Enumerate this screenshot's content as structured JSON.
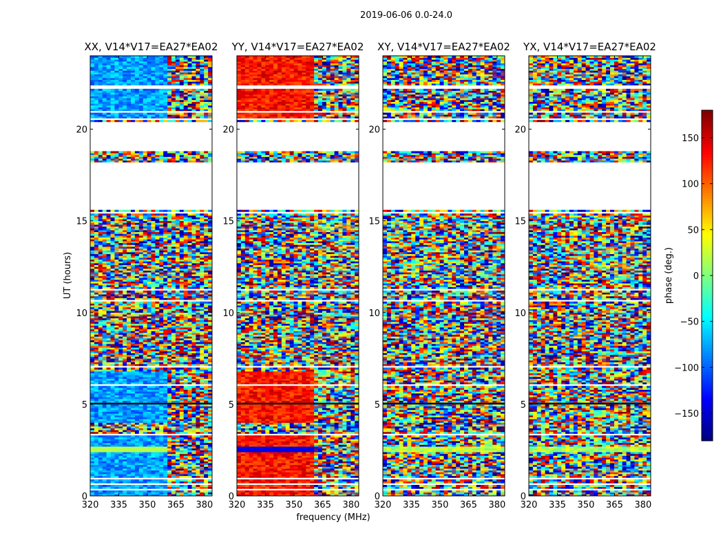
{
  "figure": {
    "suptitle": "2019-06-06 0.0-24.0"
  },
  "chart_data": {
    "type": "heatmap",
    "panels": [
      {
        "title": "XX, V14*V17=EA27*EA02",
        "tone": "blue",
        "cross": false
      },
      {
        "title": "YY, V14*V17=EA27*EA02",
        "tone": "red",
        "cross": false
      },
      {
        "title": "XY, V14*V17=EA27*EA02",
        "tone": "noise",
        "cross": true
      },
      {
        "title": "YX, V14*V17=EA27*EA02",
        "tone": "noise",
        "cross": true
      }
    ],
    "xlabel": "frequency (MHz)",
    "ylabel": "UT (hours)",
    "xlim": [
      320,
      384
    ],
    "ylim": [
      0,
      24
    ],
    "xticks": [
      320,
      335,
      350,
      365,
      380
    ],
    "yticks": [
      0,
      5,
      10,
      15,
      20
    ],
    "colorbar": {
      "label": "phase (deg.)",
      "range": [
        -180,
        180
      ],
      "ticks": [
        -150,
        -100,
        -50,
        0,
        50,
        100,
        150
      ],
      "colormap": "jet"
    },
    "flagged_ut_ranges": [
      [
        0.35,
        0.42
      ],
      [
        0.62,
        0.68
      ],
      [
        0.95,
        1.0
      ],
      [
        3.3,
        3.4
      ],
      [
        3.57,
        3.65
      ],
      [
        6.05,
        6.14
      ],
      [
        7.05,
        7.1
      ],
      [
        8.9,
        8.95
      ],
      [
        10.65,
        10.72
      ],
      [
        11.22,
        11.3
      ],
      [
        15.45,
        15.55
      ],
      [
        15.6,
        18.25
      ],
      [
        18.85,
        20.45
      ],
      [
        20.55,
        20.65
      ],
      [
        20.95,
        21.05
      ],
      [
        22.2,
        22.4
      ]
    ],
    "band_split_mhz": 361
  },
  "labels": {
    "minus_sign": "−"
  }
}
